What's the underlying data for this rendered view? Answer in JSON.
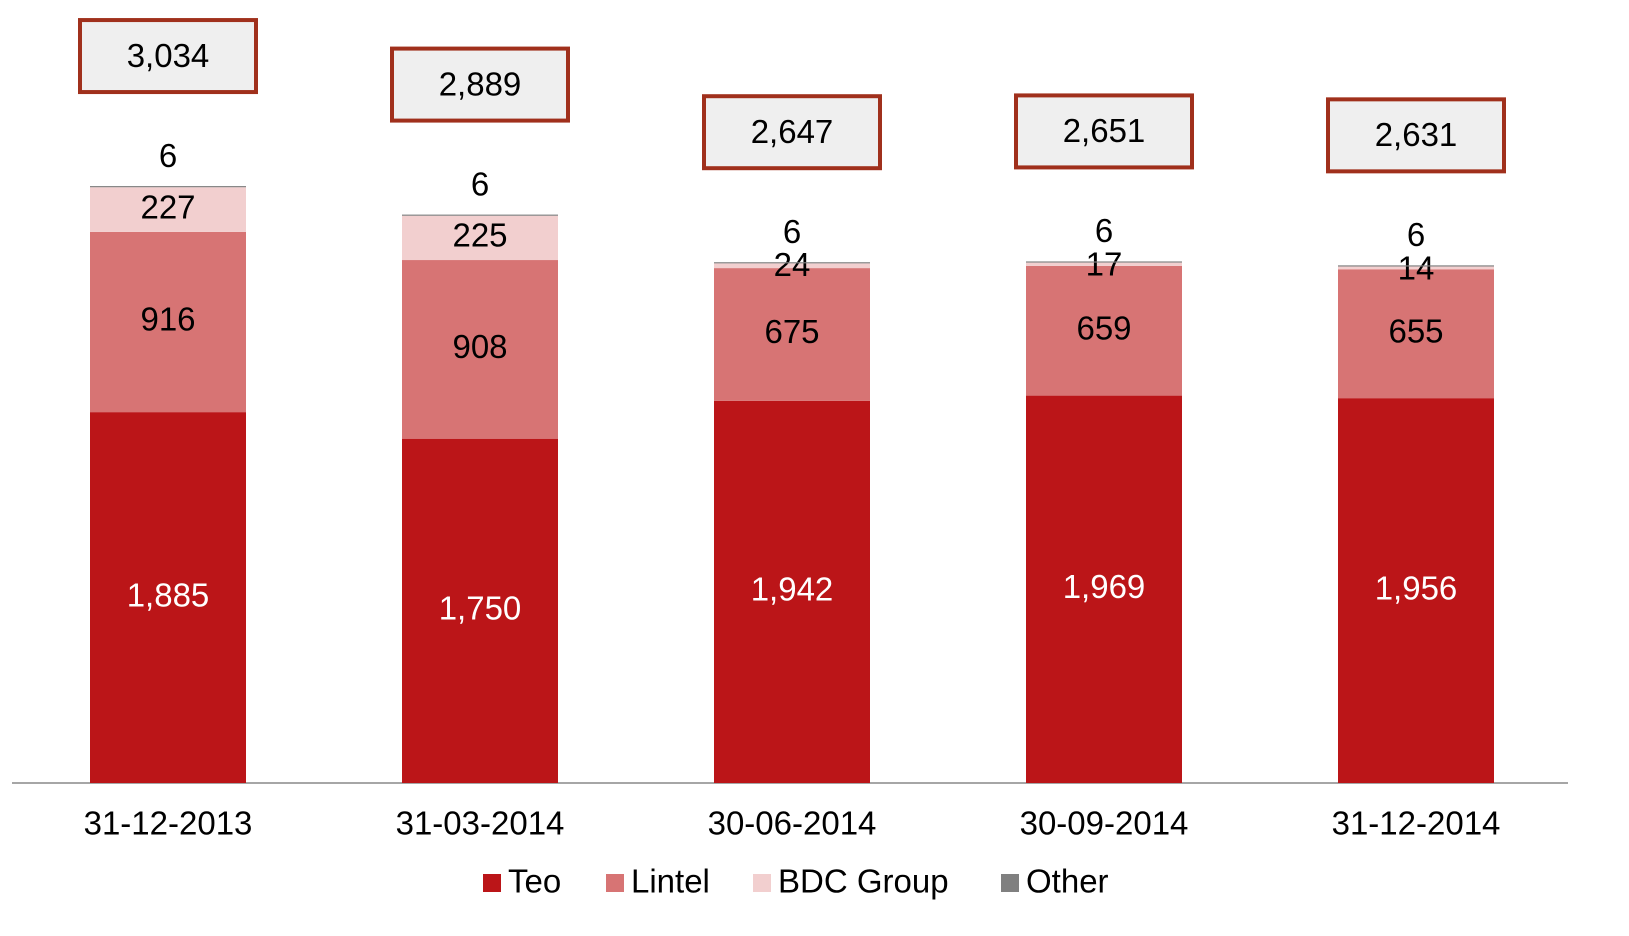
{
  "chart_data": {
    "type": "stacked_bar",
    "categories": [
      "31-12-2013",
      "31-03-2014",
      "30-06-2014",
      "30-09-2014",
      "31-12-2014"
    ],
    "series": [
      {
        "name": "Teo",
        "color": "#bb1518",
        "values": [
          1885,
          1750,
          1942,
          1969,
          1956
        ],
        "value_labels": [
          "1,885",
          "1,750",
          "1,942",
          "1,969",
          "1,956"
        ]
      },
      {
        "name": "Lintel",
        "color": "#d77474",
        "values": [
          916,
          908,
          675,
          659,
          655
        ]
      },
      {
        "name": "BDC Group",
        "color": "#f2cfcf",
        "values": [
          227,
          225,
          24,
          17,
          14
        ]
      },
      {
        "name": "Other",
        "color": "#808080",
        "values": [
          6,
          6,
          6,
          6,
          6
        ]
      }
    ],
    "totals": {
      "values": [
        3034,
        2889,
        2647,
        2651,
        2631
      ],
      "value_labels": [
        "3,034",
        "2,889",
        "2,647",
        "2,651",
        "2,631"
      ]
    },
    "ylim": [
      0,
      4000
    ]
  }
}
